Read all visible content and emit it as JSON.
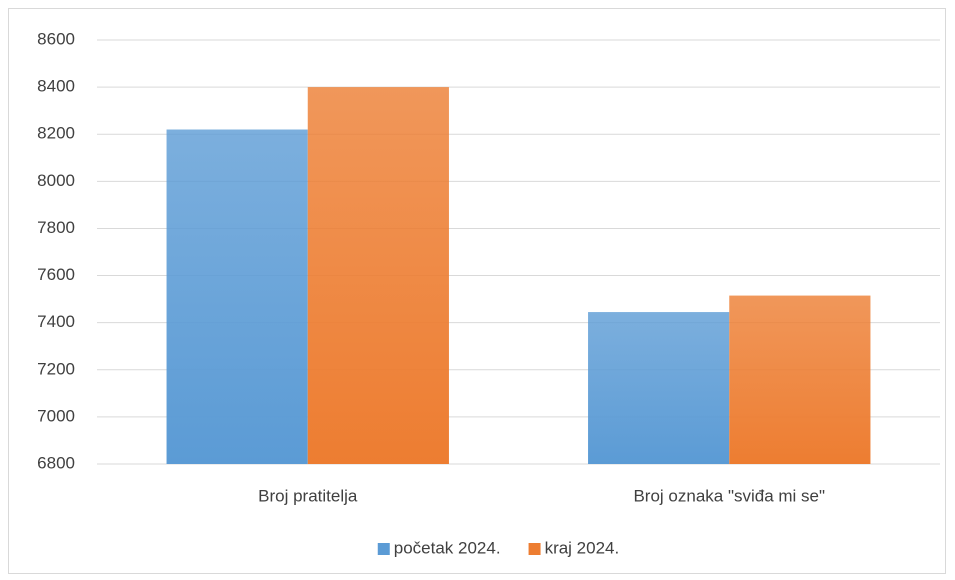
{
  "chart_data": {
    "type": "bar",
    "categories": [
      "Broj pratitelja",
      "Broj oznaka \"sviđa mi se\""
    ],
    "series": [
      {
        "name": "početak 2024.",
        "color": "#5b9bd5",
        "values": [
          8220,
          7445
        ]
      },
      {
        "name": "kraj 2024.",
        "color": "#ed7d31",
        "values": [
          8400,
          7515
        ]
      }
    ],
    "ylim": [
      6800,
      8600
    ],
    "yticks": [
      6800,
      7000,
      7200,
      7400,
      7600,
      7800,
      8000,
      8200,
      8400,
      8600
    ],
    "grid": true,
    "legend": "bottom"
  }
}
